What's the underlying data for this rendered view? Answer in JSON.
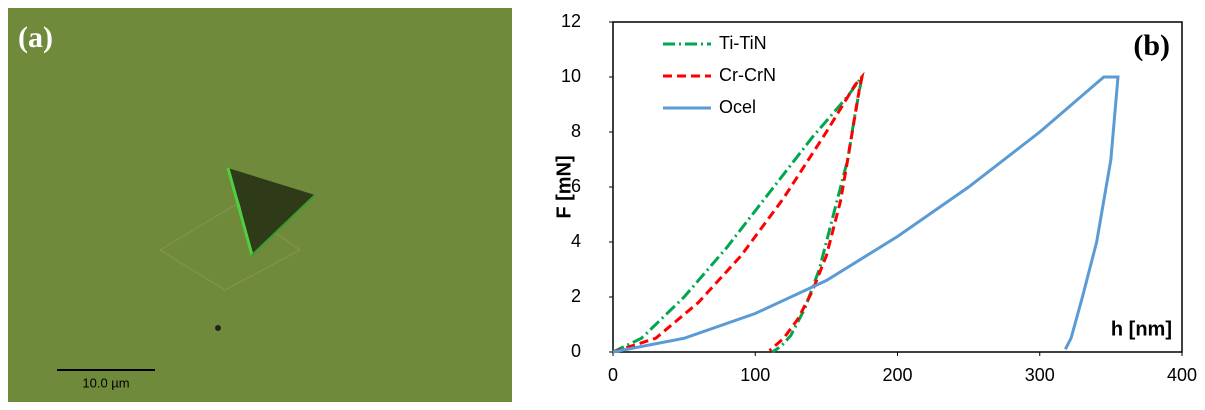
{
  "image_panel": {
    "label": "(a)",
    "scale_bar": "10.0 µm"
  },
  "chart_data": {
    "type": "line",
    "panel_label": "(b)",
    "ylabel": "F [mN]",
    "xlabel": "h [nm]",
    "xlim": [
      0,
      400
    ],
    "xticks": [
      0,
      100,
      200,
      300,
      400
    ],
    "ylim": [
      0,
      12
    ],
    "yticks": [
      0,
      2,
      4,
      6,
      8,
      10,
      12
    ],
    "legend": "upper left",
    "series": [
      {
        "name": "Ti-TiN",
        "color": "#00a650",
        "dash": "dashdot",
        "x": [
          0,
          20,
          50,
          80,
          110,
          140,
          165,
          172,
          175,
          170,
          165,
          155,
          145,
          135,
          125,
          118,
          112
        ],
        "values": [
          0,
          0.5,
          2,
          3.8,
          5.8,
          7.8,
          9.3,
          9.8,
          10,
          8.6,
          7,
          5,
          3,
          1.6,
          0.6,
          0.2,
          0
        ]
      },
      {
        "name": "Cr-CrN",
        "color": "#ff0000",
        "dash": "dashed",
        "x": [
          0,
          30,
          60,
          90,
          120,
          150,
          170,
          175,
          173,
          165,
          160,
          150,
          140,
          130,
          120,
          110
        ],
        "values": [
          0,
          0.5,
          1.8,
          3.5,
          5.6,
          8,
          9.7,
          10,
          9.5,
          7,
          5.5,
          3.5,
          2.2,
          1.2,
          0.5,
          0.05
        ]
      },
      {
        "name": "Ocel",
        "color": "#5b9bd5",
        "dash": "solid",
        "x": [
          0,
          50,
          100,
          150,
          200,
          250,
          300,
          345,
          355,
          350,
          340,
          330,
          322,
          318
        ],
        "values": [
          0,
          0.5,
          1.4,
          2.6,
          4.2,
          6,
          8,
          10,
          10,
          7,
          4,
          2,
          0.5,
          0.1
        ]
      }
    ]
  }
}
